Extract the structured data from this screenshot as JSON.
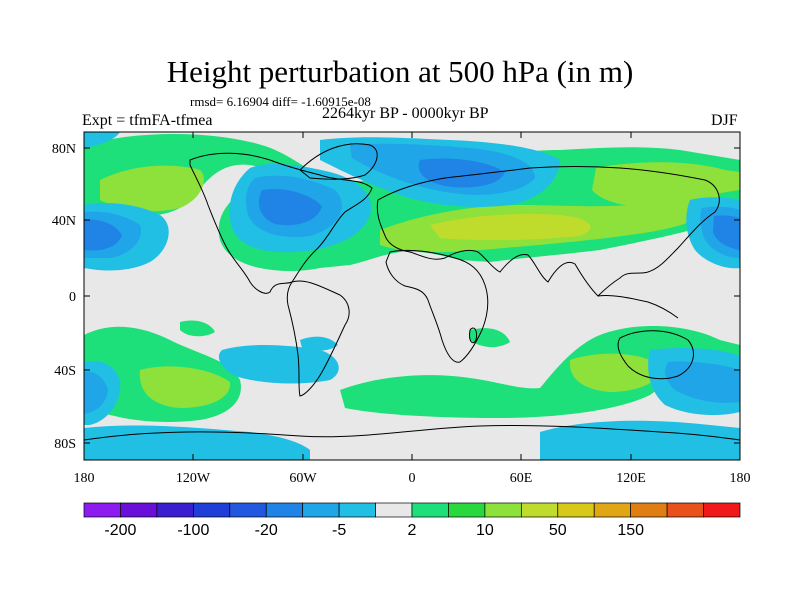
{
  "header": {
    "title": "Height perturbation at 500 hPa (in m)",
    "stats": "rmsd= 6.16904 diff= -1.60915e-08",
    "experiment": "Expt = tfmFA-tfmea",
    "period": "2264kyr BP - 0000kyr BP",
    "season": "DJF"
  },
  "map": {
    "lat_ticks": [
      "80N",
      "40N",
      "0",
      "40S",
      "80S"
    ],
    "lon_ticks": [
      "180",
      "120W",
      "60W",
      "0",
      "60E",
      "120E",
      "180"
    ]
  },
  "colorbar": {
    "colors": [
      "#8c1cf0",
      "#6a0fd8",
      "#3a1fd0",
      "#1f3fd8",
      "#2258e0",
      "#1f84e6",
      "#1fa5e8",
      "#22bfe4",
      "#e8e8e8",
      "#1ee07a",
      "#28d83c",
      "#8ee03a",
      "#bfdc2c",
      "#d8c81a",
      "#e0a616",
      "#e07e14",
      "#e8501c",
      "#f01818"
    ],
    "labels": [
      "-200",
      "-100",
      "-20",
      "-5",
      "2",
      "10",
      "50",
      "150"
    ]
  },
  "colors": {
    "neutral": "#e8e8e8",
    "coast": "#000000"
  }
}
